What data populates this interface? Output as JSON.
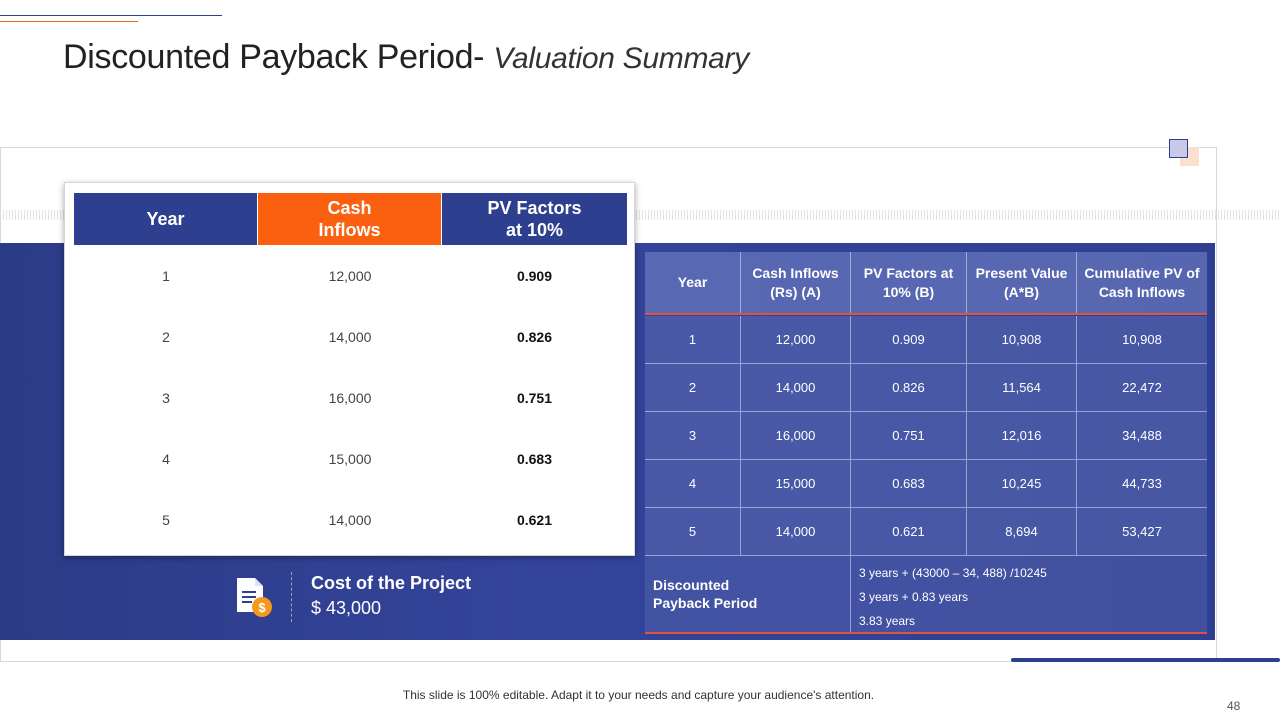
{
  "title": {
    "main": "Discounted Payback Period- ",
    "sub": "Valuation Summary"
  },
  "left_table": {
    "headers": [
      "Year",
      "Cash\nInflows",
      "PV Factors\nat 10%"
    ],
    "rows": [
      [
        "1",
        "12,000",
        "0.909"
      ],
      [
        "2",
        "14,000",
        "0.826"
      ],
      [
        "3",
        "16,000",
        "0.751"
      ],
      [
        "4",
        "15,000",
        "0.683"
      ],
      [
        "5",
        "14,000",
        "0.621"
      ]
    ]
  },
  "cost": {
    "label": "Cost of the Project",
    "value": "$ 43,000",
    "icon": "document-dollar-icon"
  },
  "right_table": {
    "headers": [
      "Year",
      "Cash Inflows\n(Rs) (A)",
      "PV Factors at\n10% (B)",
      "Present Value\n(A*B)",
      "Cumulative PV of\nCash Inflows"
    ],
    "rows": [
      [
        "1",
        "12,000",
        "0.909",
        "10,908",
        "10,908"
      ],
      [
        "2",
        "14,000",
        "0.826",
        "11,564",
        "22,472"
      ],
      [
        "3",
        "16,000",
        "0.751",
        "12,016",
        "34,488"
      ],
      [
        "4",
        "15,000",
        "0.683",
        "10,245",
        "44,733"
      ],
      [
        "5",
        "14,000",
        "0.621",
        "8,694",
        "53,427"
      ]
    ],
    "discounted_payback": {
      "label": "Discounted\nPayback Period",
      "lines": [
        "3 years  + (43000 – 34, 488) /10245",
        "3 years  + 0.83 years",
        "3.83 years"
      ]
    }
  },
  "footer": {
    "note": "This slide is 100% editable. Adapt it to your needs and capture your audience's attention.",
    "page_number": "48"
  },
  "colors": {
    "navy": "#2e3f8f",
    "orange": "#fb6010",
    "red_rule": "#e0533d"
  }
}
